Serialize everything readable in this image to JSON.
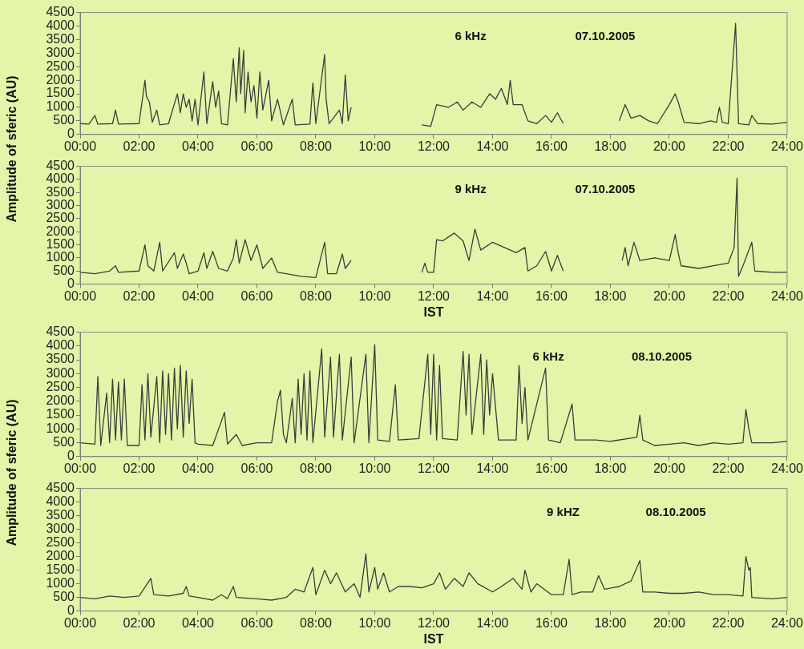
{
  "chart_data": [
    {
      "type": "line",
      "ylabel": "Amplitude of sferic (AU)",
      "annotations": [
        "6 kHz",
        "07.10.2005"
      ],
      "xlim": [
        0,
        24
      ],
      "xticks": [
        {
          "value": 0,
          "label": "00:00"
        },
        {
          "value": 2,
          "label": "02:00"
        },
        {
          "value": 4,
          "label": "04:00"
        },
        {
          "value": 6,
          "label": "06:00"
        },
        {
          "value": 8,
          "label": "08:00"
        },
        {
          "value": 10,
          "label": "10:00"
        },
        {
          "value": 12,
          "label": "12:00"
        },
        {
          "value": 14,
          "label": "14:00"
        },
        {
          "value": 16,
          "label": "16:00"
        },
        {
          "value": 18,
          "label": "18:00"
        },
        {
          "value": 20,
          "label": "20:00"
        },
        {
          "value": 22,
          "label": "22:00"
        },
        {
          "value": 24,
          "label": "24:00"
        }
      ],
      "ylim": [
        0,
        4500
      ],
      "yticks": [
        0,
        500,
        1000,
        1500,
        2000,
        2500,
        3000,
        3500,
        4000,
        4500
      ],
      "grid": false,
      "legend": false,
      "marker": "none",
      "line_style": "solid",
      "series": [
        {
          "color": "#3c3c3c",
          "x": [
            0,
            0.3,
            0.5,
            0.6,
            1.1,
            1.2,
            1.3,
            2.0,
            2.2,
            2.25,
            2.35,
            2.45,
            2.6,
            2.7,
            3.0,
            3.3,
            3.4,
            3.5,
            3.6,
            3.7,
            3.8,
            3.9,
            4.0,
            4.2,
            4.3,
            4.5,
            4.6,
            4.7,
            4.8,
            5.0,
            5.2,
            5.3,
            5.4,
            5.45,
            5.55,
            5.6,
            5.7,
            5.8,
            5.9,
            6.0,
            6.1,
            6.2,
            6.4,
            6.5,
            6.7,
            6.9,
            7.2,
            7.3,
            7.8,
            7.9,
            8.0,
            8.3,
            8.35,
            8.45,
            8.8,
            8.9,
            9.0,
            9.1,
            9.2,
            10.4,
            11.6,
            11.9,
            12.0,
            12.1,
            12.5,
            12.8,
            13.0,
            13.3,
            13.6,
            13.9,
            14.1,
            14.3,
            14.5,
            14.6,
            14.7,
            15.0,
            15.2,
            15.5,
            15.8,
            16.0,
            16.2,
            16.4,
            17.3,
            18.3,
            18.5,
            18.7,
            19.0,
            19.3,
            19.6,
            20.0,
            20.2,
            20.3,
            20.5,
            21.0,
            21.4,
            21.6,
            21.7,
            21.8,
            22.0,
            22.25,
            22.35,
            22.7,
            22.8,
            23.0,
            23.5,
            24
          ],
          "values": [
            400,
            380,
            700,
            380,
            400,
            900,
            380,
            400,
            2000,
            1400,
            1200,
            450,
            900,
            350,
            400,
            1500,
            800,
            1500,
            1000,
            1300,
            500,
            1300,
            350,
            2300,
            400,
            1950,
            1000,
            1600,
            400,
            350,
            2800,
            1200,
            3200,
            1500,
            3100,
            800,
            2300,
            1200,
            1800,
            600,
            2300,
            900,
            2000,
            500,
            1300,
            350,
            1300,
            350,
            380,
            1900,
            400,
            2950,
            1300,
            400,
            900,
            400,
            2200,
            500,
            1000,
            null,
            350,
            300,
            700,
            1100,
            1000,
            1200,
            900,
            1200,
            1000,
            1500,
            1300,
            1700,
            1100,
            2000,
            1100,
            1100,
            500,
            400,
            700,
            450,
            800,
            400,
            null,
            500,
            1100,
            600,
            700,
            500,
            400,
            1100,
            1500,
            1200,
            450,
            400,
            500,
            450,
            1000,
            450,
            400,
            4100,
            400,
            350,
            700,
            400,
            380,
            450
          ]
        }
      ]
    },
    {
      "type": "line",
      "xlabel": "IST",
      "annotations": [
        "9 kHz",
        "07.10.2005"
      ],
      "xlim": [
        0,
        24
      ],
      "xticks": [
        {
          "value": 0,
          "label": "00:00"
        },
        {
          "value": 2,
          "label": "02:00"
        },
        {
          "value": 4,
          "label": "04:00"
        },
        {
          "value": 6,
          "label": "06:00"
        },
        {
          "value": 8,
          "label": "08:00"
        },
        {
          "value": 10,
          "label": "10:00"
        },
        {
          "value": 12,
          "label": "12:00"
        },
        {
          "value": 14,
          "label": "14:00"
        },
        {
          "value": 16,
          "label": "16:00"
        },
        {
          "value": 18,
          "label": "18:00"
        },
        {
          "value": 20,
          "label": "20:00"
        },
        {
          "value": 22,
          "label": "22:00"
        },
        {
          "value": 24,
          "label": "24:00"
        }
      ],
      "ylim": [
        0,
        4500
      ],
      "yticks": [
        0,
        500,
        1000,
        1500,
        2000,
        2500,
        3000,
        3500,
        4000,
        4500
      ],
      "grid": false,
      "legend": false,
      "marker": "none",
      "line_style": "solid",
      "series": [
        {
          "color": "#3c3c3c",
          "x": [
            0,
            0.5,
            1.0,
            1.2,
            1.3,
            2.0,
            2.2,
            2.3,
            2.5,
            2.7,
            2.8,
            3.2,
            3.3,
            3.5,
            3.6,
            3.7,
            4.0,
            4.2,
            4.3,
            4.5,
            4.7,
            5.0,
            5.2,
            5.3,
            5.4,
            5.6,
            5.8,
            6.0,
            6.2,
            6.5,
            6.7,
            7.0,
            7.5,
            8.0,
            8.3,
            8.4,
            8.7,
            8.9,
            9.0,
            9.2,
            10.4,
            11.6,
            11.7,
            11.8,
            12.0,
            12.1,
            12.3,
            12.7,
            13.0,
            13.2,
            13.4,
            13.6,
            14.0,
            14.4,
            14.8,
            15.1,
            15.2,
            15.5,
            15.8,
            16.0,
            16.2,
            16.4,
            17.5,
            18.4,
            18.5,
            18.6,
            18.8,
            19.0,
            19.5,
            20.0,
            20.2,
            20.3,
            20.4,
            21.0,
            21.5,
            22.0,
            22.2,
            22.3,
            22.35,
            22.5,
            22.8,
            22.9,
            23.5,
            24
          ],
          "values": [
            450,
            400,
            500,
            700,
            450,
            500,
            1500,
            700,
            500,
            1600,
            500,
            1200,
            600,
            1150,
            800,
            400,
            500,
            1200,
            600,
            1250,
            600,
            500,
            1000,
            1700,
            800,
            1700,
            900,
            1500,
            600,
            1000,
            450,
            400,
            300,
            250,
            1600,
            400,
            400,
            1150,
            600,
            900,
            null,
            450,
            800,
            450,
            450,
            1700,
            1650,
            1950,
            1650,
            900,
            2100,
            1300,
            1600,
            1400,
            1200,
            1400,
            500,
            700,
            1250,
            500,
            1100,
            500,
            null,
            900,
            1400,
            700,
            1600,
            900,
            1000,
            900,
            1900,
            1200,
            700,
            600,
            700,
            800,
            1400,
            4050,
            300,
            700,
            1600,
            500,
            450,
            450
          ]
        }
      ]
    },
    {
      "type": "line",
      "ylabel": "Amplitude of sferic (AU)",
      "annotations": [
        "6 kHz",
        "08.10.2005"
      ],
      "xlim": [
        0,
        24
      ],
      "xticks": [
        {
          "value": 0,
          "label": "00:00"
        },
        {
          "value": 2,
          "label": "02:00"
        },
        {
          "value": 4,
          "label": "04:00"
        },
        {
          "value": 6,
          "label": "06:00"
        },
        {
          "value": 8,
          "label": "08:00"
        },
        {
          "value": 10,
          "label": "10:00"
        },
        {
          "value": 12,
          "label": "12:00"
        },
        {
          "value": 14,
          "label": "14:00"
        },
        {
          "value": 16,
          "label": "16:00"
        },
        {
          "value": 18,
          "label": "18:00"
        },
        {
          "value": 20,
          "label": "20:00"
        },
        {
          "value": 22,
          "label": "22:00"
        },
        {
          "value": 24,
          "label": "24:00"
        }
      ],
      "ylim": [
        0,
        4500
      ],
      "yticks": [
        0,
        500,
        1000,
        1500,
        2000,
        2500,
        3000,
        3500,
        4000,
        4500
      ],
      "grid": false,
      "legend": false,
      "marker": "none",
      "line_style": "solid",
      "series": [
        {
          "color": "#3c3c3c",
          "x": [
            0,
            0.5,
            0.6,
            0.7,
            0.9,
            1.0,
            1.1,
            1.2,
            1.3,
            1.4,
            1.5,
            1.6,
            2.0,
            2.1,
            2.2,
            2.3,
            2.4,
            2.6,
            2.7,
            2.8,
            2.9,
            3.0,
            3.1,
            3.2,
            3.3,
            3.4,
            3.5,
            3.6,
            3.7,
            3.8,
            3.9,
            4.0,
            4.5,
            4.9,
            5.0,
            5.3,
            5.5,
            6.0,
            6.5,
            6.7,
            6.8,
            6.9,
            7.0,
            7.2,
            7.3,
            7.4,
            7.5,
            7.6,
            7.7,
            7.8,
            7.9,
            8.2,
            8.3,
            8.5,
            8.6,
            8.8,
            8.9,
            9.2,
            9.3,
            9.7,
            9.8,
            10.0,
            10.1,
            10.5,
            10.7,
            10.8,
            11.5,
            11.8,
            11.9,
            12.0,
            12.1,
            12.2,
            12.3,
            12.8,
            13.0,
            13.1,
            13.2,
            13.3,
            13.6,
            13.7,
            13.8,
            13.9,
            14.0,
            14.2,
            14.8,
            14.9,
            15.0,
            15.1,
            15.2,
            15.8,
            15.9,
            16.3,
            16.7,
            16.8,
            17.5,
            18.0,
            18.9,
            19.0,
            19.1,
            19.5,
            20.0,
            20.5,
            21.0,
            21.5,
            22.0,
            22.5,
            22.6,
            22.7,
            22.8,
            23.5,
            24
          ],
          "values": [
            500,
            450,
            2900,
            400,
            2300,
            500,
            2800,
            600,
            2700,
            600,
            2800,
            400,
            400,
            2600,
            600,
            3000,
            700,
            2900,
            500,
            3100,
            800,
            3000,
            600,
            3200,
            1000,
            3300,
            700,
            3100,
            1200,
            2800,
            500,
            450,
            400,
            1600,
            450,
            800,
            400,
            500,
            500,
            2000,
            2400,
            800,
            500,
            2100,
            500,
            2800,
            800,
            3000,
            600,
            3100,
            500,
            3900,
            700,
            3600,
            700,
            3700,
            600,
            3600,
            500,
            3700,
            500,
            4050,
            600,
            550,
            2600,
            600,
            650,
            3700,
            800,
            3700,
            600,
            3300,
            650,
            600,
            3800,
            1500,
            3700,
            800,
            3700,
            800,
            3500,
            1500,
            3000,
            600,
            600,
            3300,
            1200,
            2500,
            600,
            3200,
            600,
            500,
            1900,
            600,
            600,
            550,
            700,
            1500,
            600,
            400,
            450,
            500,
            400,
            500,
            450,
            500,
            1700,
            1000,
            500,
            500,
            550
          ]
        }
      ]
    },
    {
      "type": "line",
      "xlabel": "IST",
      "annotations": [
        "9 kHZ",
        "08.10.2005"
      ],
      "xlim": [
        0,
        24
      ],
      "xticks": [
        {
          "value": 0,
          "label": "00:00"
        },
        {
          "value": 2,
          "label": "02:00"
        },
        {
          "value": 4,
          "label": "04:00"
        },
        {
          "value": 6,
          "label": "06:00"
        },
        {
          "value": 8,
          "label": "08:00"
        },
        {
          "value": 10,
          "label": "10:00"
        },
        {
          "value": 12,
          "label": "12:00"
        },
        {
          "value": 14,
          "label": "14:00"
        },
        {
          "value": 16,
          "label": "16:00"
        },
        {
          "value": 18,
          "label": "18:00"
        },
        {
          "value": 20,
          "label": "20:00"
        },
        {
          "value": 22,
          "label": "22:00"
        },
        {
          "value": 24,
          "label": "24:00"
        }
      ],
      "ylim": [
        0,
        4500
      ],
      "yticks": [
        0,
        500,
        1000,
        1500,
        2000,
        2500,
        3000,
        3500,
        4000,
        4500
      ],
      "grid": false,
      "legend": false,
      "marker": "none",
      "line_style": "solid",
      "series": [
        {
          "color": "#3c3c3c",
          "x": [
            0,
            0.5,
            1.0,
            1.5,
            2.0,
            2.4,
            2.5,
            3.0,
            3.5,
            3.6,
            3.7,
            4.0,
            4.5,
            4.8,
            5.0,
            5.2,
            5.3,
            6.0,
            6.5,
            7.0,
            7.3,
            7.6,
            7.9,
            8.0,
            8.3,
            8.5,
            8.7,
            9.0,
            9.3,
            9.5,
            9.7,
            9.8,
            10.0,
            10.1,
            10.3,
            10.5,
            10.8,
            11.2,
            11.6,
            12.0,
            12.2,
            12.4,
            12.7,
            13.0,
            13.2,
            13.5,
            14.0,
            14.3,
            14.7,
            15.0,
            15.1,
            15.3,
            15.5,
            16.0,
            16.4,
            16.6,
            16.7,
            17.0,
            17.4,
            17.6,
            17.8,
            18.3,
            18.7,
            19.0,
            19.1,
            19.5,
            20.0,
            20.5,
            21.0,
            21.5,
            22.0,
            22.5,
            22.6,
            22.7,
            22.75,
            22.8,
            23.5,
            24
          ],
          "values": [
            500,
            450,
            550,
            500,
            550,
            1200,
            600,
            550,
            650,
            900,
            550,
            500,
            400,
            600,
            450,
            900,
            500,
            450,
            400,
            500,
            800,
            700,
            1600,
            600,
            1500,
            1000,
            1400,
            700,
            1000,
            500,
            2100,
            700,
            1600,
            800,
            1400,
            700,
            900,
            900,
            850,
            1000,
            1400,
            800,
            1200,
            900,
            1400,
            1000,
            700,
            900,
            1200,
            800,
            1500,
            700,
            1000,
            600,
            600,
            1900,
            600,
            700,
            700,
            1300,
            800,
            900,
            1100,
            1850,
            700,
            700,
            650,
            650,
            700,
            600,
            600,
            550,
            2000,
            1500,
            1600,
            500,
            450,
            500
          ]
        }
      ]
    }
  ]
}
